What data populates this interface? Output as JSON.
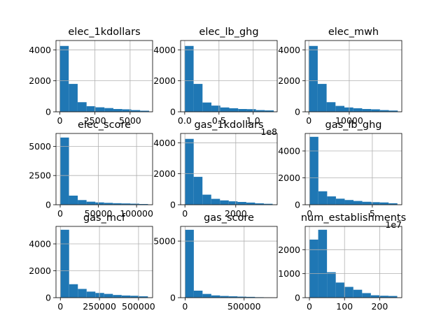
{
  "chart_data": [
    {
      "type": "bar",
      "title": "elec_1kdollars",
      "values": [
        4250,
        1800,
        620,
        360,
        290,
        240,
        180,
        160,
        110,
        70
      ],
      "xlim": [
        -270,
        6600
      ],
      "bin_range": [
        0,
        6350
      ],
      "ylim": [
        0,
        4600
      ],
      "xticks": [
        {
          "value": 0,
          "label": "0"
        },
        {
          "value": 2500,
          "label": "2500"
        },
        {
          "value": 5000,
          "label": "5000"
        }
      ],
      "yticks": [
        {
          "value": 0,
          "label": "0"
        },
        {
          "value": 2000,
          "label": "2000"
        },
        {
          "value": 4000,
          "label": "4000"
        }
      ],
      "grid": true
    },
    {
      "type": "bar",
      "title": "elec_lb_ghg",
      "values": [
        4250,
        1800,
        600,
        400,
        280,
        230,
        180,
        170,
        110,
        90
      ],
      "xlim": [
        -0.06,
        1.35
      ],
      "bin_range": [
        0,
        1.3
      ],
      "ylim": [
        0,
        4600
      ],
      "xticks": [
        {
          "value": 0,
          "label": "0.0"
        },
        {
          "value": 0.5,
          "label": "0.5"
        },
        {
          "value": 1.0,
          "label": "1.0"
        }
      ],
      "yticks": [
        {
          "value": 0,
          "label": "0"
        },
        {
          "value": 2000,
          "label": "2000"
        },
        {
          "value": 4000,
          "label": "4000"
        }
      ],
      "offset_text": "1e8",
      "grid": true
    },
    {
      "type": "bar",
      "title": "elec_mwh",
      "values": [
        4250,
        1800,
        620,
        380,
        280,
        230,
        180,
        160,
        110,
        80
      ],
      "xlim": [
        -900,
        23000
      ],
      "bin_range": [
        0,
        22000
      ],
      "ylim": [
        0,
        4600
      ],
      "xticks": [
        {
          "value": 0,
          "label": "0"
        },
        {
          "value": 10000,
          "label": "10000"
        }
      ],
      "yticks": [
        {
          "value": 0,
          "label": "0"
        },
        {
          "value": 2000,
          "label": "2000"
        },
        {
          "value": 4000,
          "label": "4000"
        }
      ],
      "grid": true
    },
    {
      "type": "bar",
      "title": "elec_score",
      "values": [
        5750,
        780,
        400,
        260,
        200,
        160,
        130,
        110,
        90,
        60
      ],
      "xlim": [
        -5500,
        121000
      ],
      "bin_range": [
        0,
        115000
      ],
      "ylim": [
        0,
        6100
      ],
      "xticks": [
        {
          "value": 0,
          "label": "0"
        },
        {
          "value": 50000,
          "label": "50000"
        },
        {
          "value": 100000,
          "label": "100000"
        }
      ],
      "yticks": [
        {
          "value": 0,
          "label": "0"
        },
        {
          "value": 2500,
          "label": "2500"
        },
        {
          "value": 5000,
          "label": "5000"
        }
      ],
      "grid": true
    },
    {
      "type": "bar",
      "title": "gas_1kdollars",
      "values": [
        4250,
        1800,
        650,
        380,
        280,
        220,
        180,
        140,
        90,
        60
      ],
      "xlim": [
        -170,
        3630
      ],
      "bin_range": [
        0,
        3450
      ],
      "ylim": [
        0,
        4600
      ],
      "xticks": [
        {
          "value": 0,
          "label": "0"
        },
        {
          "value": 2000,
          "label": "2000"
        }
      ],
      "yticks": [
        {
          "value": 0,
          "label": "0"
        },
        {
          "value": 2000,
          "label": "2000"
        },
        {
          "value": 4000,
          "label": "4000"
        }
      ],
      "grid": true
    },
    {
      "type": "bar",
      "title": "gas_lb_ghg",
      "values": [
        5050,
        1000,
        620,
        450,
        350,
        280,
        220,
        190,
        170,
        110
      ],
      "xlim": [
        -0.35,
        7.35
      ],
      "bin_range": [
        0,
        7
      ],
      "ylim": [
        0,
        5300
      ],
      "xticks": [
        {
          "value": 0,
          "label": "0"
        },
        {
          "value": 5,
          "label": "5"
        }
      ],
      "yticks": [
        {
          "value": 0,
          "label": "0"
        },
        {
          "value": 2000,
          "label": "2000"
        },
        {
          "value": 4000,
          "label": "4000"
        }
      ],
      "offset_text": "1e7",
      "grid": true
    },
    {
      "type": "bar",
      "title": "gas_mcf",
      "values": [
        5050,
        1000,
        650,
        450,
        350,
        280,
        200,
        160,
        140,
        100
      ],
      "xlim": [
        -28000,
        590000
      ],
      "bin_range": [
        0,
        560000
      ],
      "ylim": [
        0,
        5300
      ],
      "xticks": [
        {
          "value": 0,
          "label": "0"
        },
        {
          "value": 250000,
          "label": "250000"
        },
        {
          "value": 500000,
          "label": "500000"
        }
      ],
      "yticks": [
        {
          "value": 0,
          "label": "0"
        },
        {
          "value": 2000,
          "label": "2000"
        },
        {
          "value": 4000,
          "label": "4000"
        }
      ],
      "grid": true
    },
    {
      "type": "bar",
      "title": "gas_score",
      "values": [
        6000,
        620,
        330,
        200,
        150,
        120,
        90,
        70,
        40,
        30
      ],
      "xlim": [
        -38000,
        780000
      ],
      "bin_range": [
        0,
        740000
      ],
      "ylim": [
        0,
        6300
      ],
      "xticks": [
        {
          "value": 0,
          "label": "0"
        },
        {
          "value": 500000,
          "label": "500000"
        }
      ],
      "yticks": [
        {
          "value": 0,
          "label": "0"
        },
        {
          "value": 5000,
          "label": "5000"
        }
      ],
      "grid": true
    },
    {
      "type": "bar",
      "title": "num_establishments",
      "values": [
        2420,
        2830,
        1060,
        630,
        450,
        330,
        190,
        100,
        80,
        70
      ],
      "xlim": [
        -12,
        263
      ],
      "bin_range": [
        0,
        250
      ],
      "ylim": [
        0,
        2970
      ],
      "xticks": [
        {
          "value": 0,
          "label": "0"
        },
        {
          "value": 100,
          "label": "100"
        },
        {
          "value": 200,
          "label": "200"
        }
      ],
      "yticks": [
        {
          "value": 0,
          "label": "0"
        },
        {
          "value": 1000,
          "label": "1000"
        },
        {
          "value": 2000,
          "label": "2000"
        }
      ],
      "grid": true
    }
  ]
}
